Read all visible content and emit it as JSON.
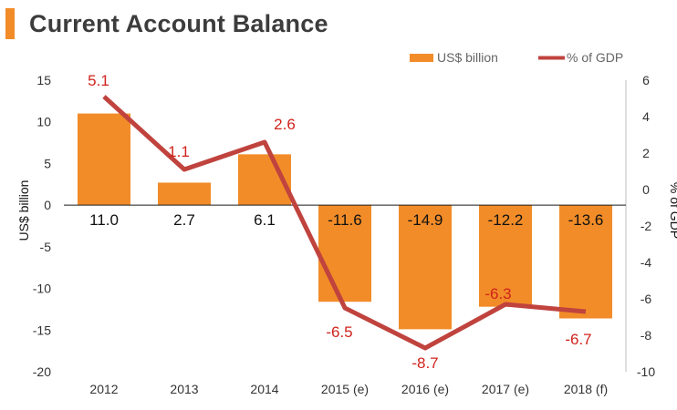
{
  "header": {
    "title": "Current Account Balance"
  },
  "colors": {
    "accent": "#f28c28",
    "bar": "#f28c28",
    "line": "#c0433e",
    "line_label": "#d0231c"
  },
  "chart_data": {
    "type": "bar+line",
    "title": "Current Account Balance",
    "categories": [
      "2012",
      "2013",
      "2014",
      "2015 (e)",
      "2016 (e)",
      "2017 (e)",
      "2018 (f)"
    ],
    "series": [
      {
        "name": "US$ billion",
        "type": "bar",
        "axis": "left",
        "values": [
          11.0,
          2.7,
          6.1,
          -11.6,
          -14.9,
          -12.2,
          -13.6
        ],
        "labels": [
          "11.0",
          "2.7",
          "6.1",
          "-11.6",
          "-14.9",
          "-12.2",
          "-13.6"
        ]
      },
      {
        "name": "% of GDP",
        "type": "line",
        "axis": "right",
        "values": [
          5.1,
          1.1,
          2.6,
          -6.5,
          -8.7,
          -6.3,
          -6.7
        ],
        "labels": [
          "5.1",
          "1.1",
          "2.6",
          "-6.5",
          "-8.7",
          "-6.3",
          "-6.7"
        ]
      }
    ],
    "ylabel": "US$ billion",
    "y2label": "% of GDP",
    "ylim": [
      -20,
      15
    ],
    "y2lim": [
      -10,
      6
    ],
    "yticks": [
      "15",
      "10",
      "5",
      "0",
      "-5",
      "-10",
      "-15",
      "-20"
    ],
    "y2ticks": [
      "6",
      "4",
      "2",
      "0",
      "-2",
      "-4",
      "-6",
      "-8",
      "-10"
    ],
    "legend_position": "top-right",
    "grid": false
  }
}
